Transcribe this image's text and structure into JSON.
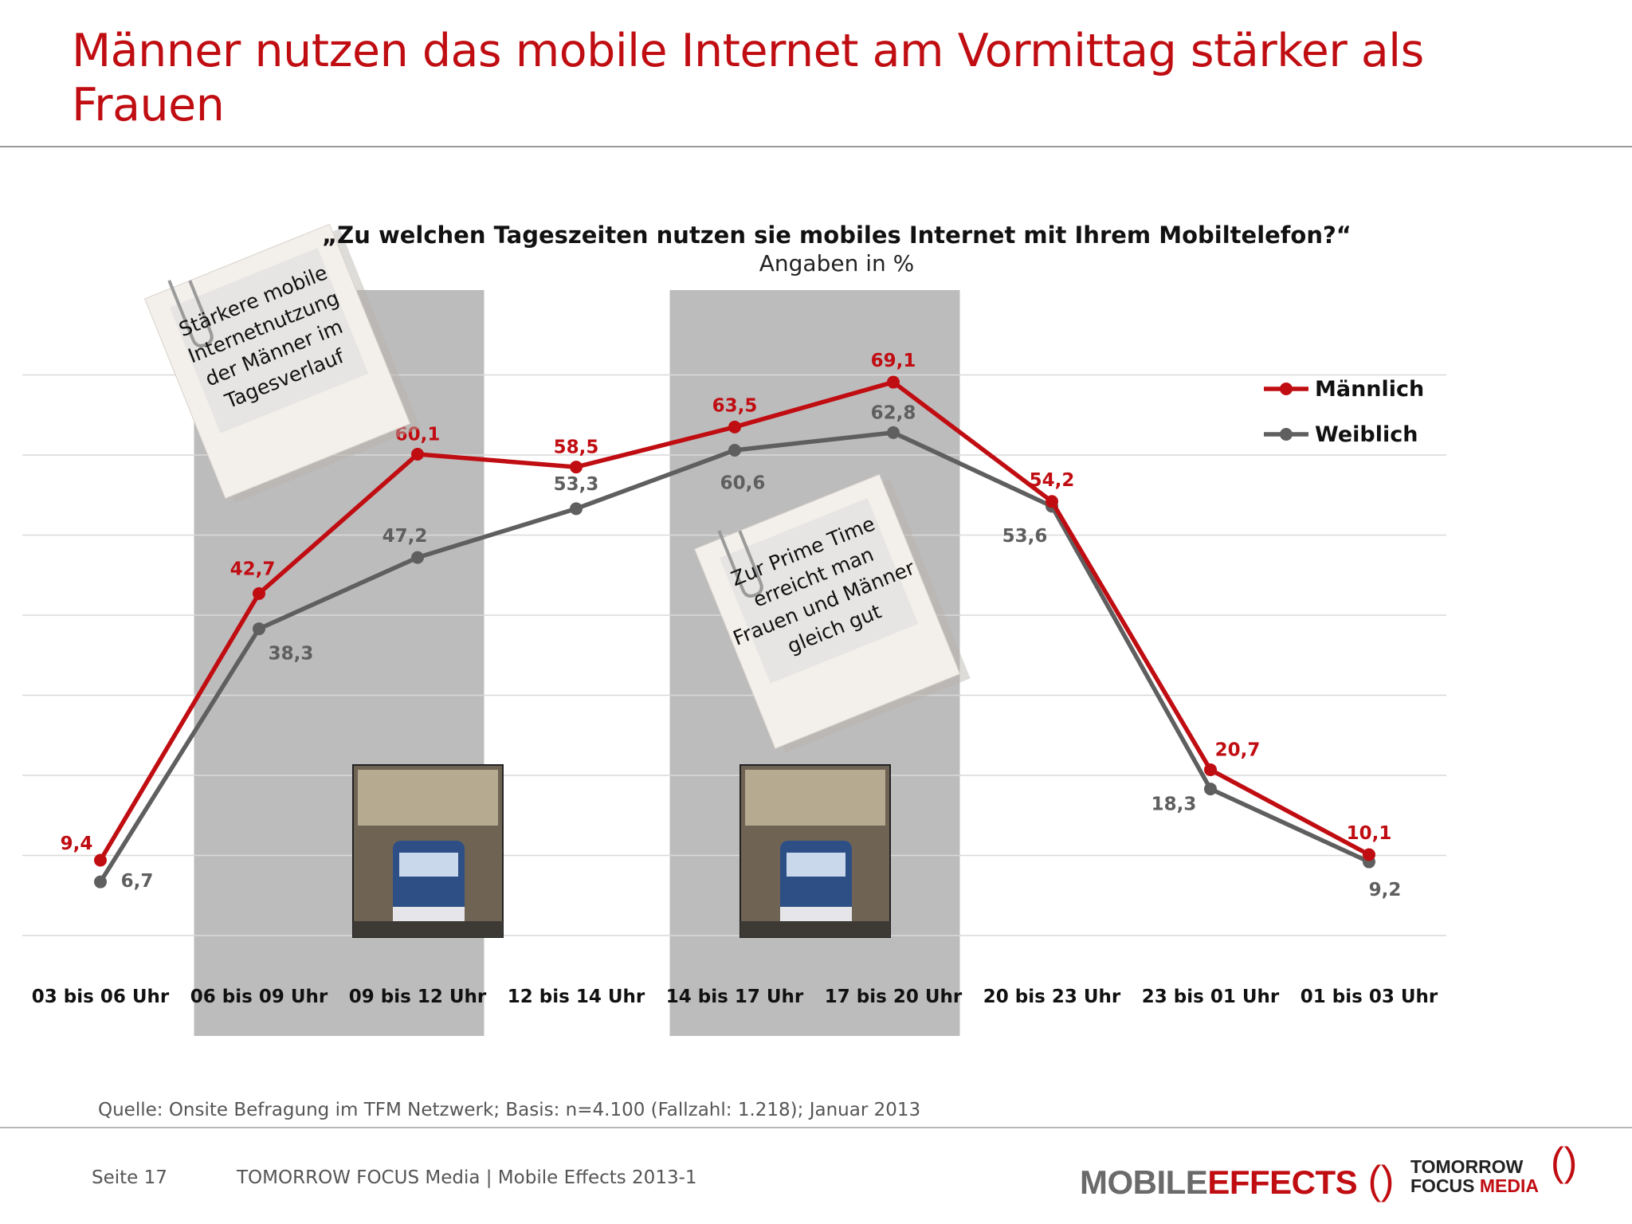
{
  "page": {
    "title": "Männer nutzen das mobile Internet am Vormittag stärker als Frauen",
    "source": "Quelle: Onsite Befragung im TFM Netzwerk; Basis: n=4.100 (Fallzahl: 1.218); Januar 2013",
    "footer_page": "Seite 17",
    "footer_text": "TOMORROW FOCUS Media  |  Mobile Effects 2013-1",
    "logo_mobile_effects_a": "MOBILE",
    "logo_mobile_effects_b": "EFFECTS",
    "logo_tfm_line1": "TOMORROW",
    "logo_tfm_line2a": "FOCUS",
    "logo_tfm_line2b": "MEDIA"
  },
  "chart_data": {
    "type": "line",
    "title": "„Zu welchen Tageszeiten nutzen sie mobiles Internet mit Ihrem Mobiltelefon?“",
    "subtitle": "Angaben in %",
    "categories": [
      "03 bis 06 Uhr",
      "06 bis 09 Uhr",
      "09 bis 12 Uhr",
      "12 bis 14 Uhr",
      "14 bis 17 Uhr",
      "17 bis 20 Uhr",
      "20 bis 23 Uhr",
      "23 bis 01 Uhr",
      "01 bis 03 Uhr"
    ],
    "series": [
      {
        "name": "Männlich",
        "color": "#c00d12",
        "values": [
          9.4,
          42.7,
          60.1,
          58.5,
          63.5,
          69.1,
          54.2,
          20.7,
          10.1
        ],
        "labels": [
          "9,4",
          "42,7",
          "60,1",
          "58,5",
          "63,5",
          "69,1",
          "54,2",
          "20,7",
          "10,1"
        ]
      },
      {
        "name": "Weiblich",
        "color": "#5f5f5f",
        "values": [
          6.7,
          38.3,
          47.2,
          53.3,
          60.6,
          62.8,
          53.6,
          18.3,
          9.2
        ],
        "labels": [
          "6,7",
          "38,3",
          "47,2",
          "53,3",
          "60,6",
          "62,8",
          "53,6",
          "18,3",
          "9,2"
        ]
      }
    ],
    "ylim": [
      0,
      90
    ],
    "grid": true,
    "legend": "top-right",
    "highlighted_categories": [
      "06 bis 09 Uhr",
      "09 bis 12 Uhr",
      "14 bis 17 Uhr",
      "17 bis 20 Uhr"
    ],
    "annotations": [
      {
        "lines": [
          "Stärkere mobile",
          "Internetnutzung",
          "der Männer im",
          "Tagesverlauf"
        ]
      },
      {
        "lines": [
          "Zur Prime Time",
          "erreicht man",
          "Frauen und Männer",
          "gleich gut"
        ]
      }
    ]
  }
}
